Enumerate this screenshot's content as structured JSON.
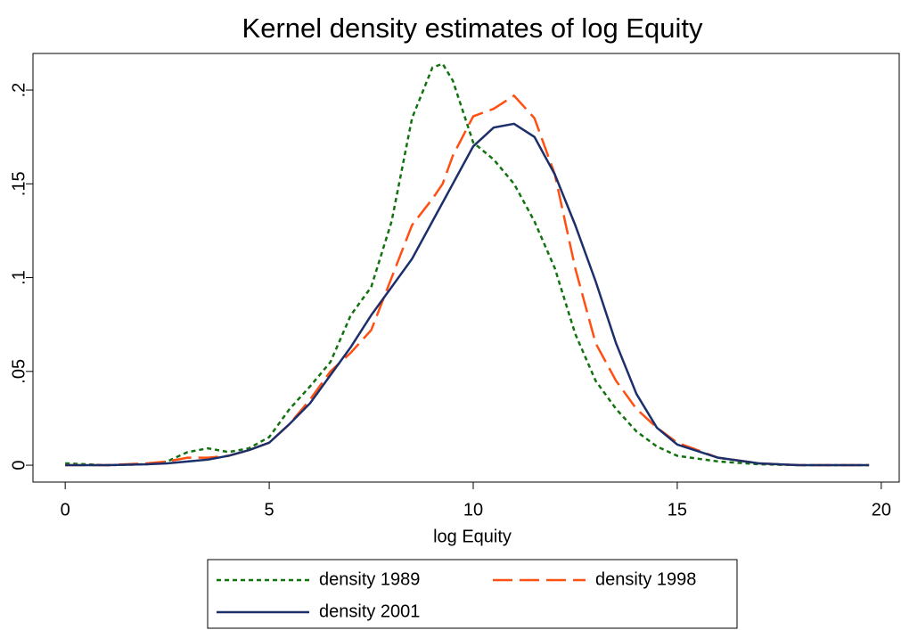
{
  "chart_data": {
    "type": "line",
    "title": "Kernel density estimates of log Equity",
    "x_label": "log Equity",
    "x": [
      0,
      1,
      2,
      2.5,
      3,
      3.5,
      4,
      4.5,
      5,
      5.5,
      6,
      6.5,
      7,
      7.5,
      8,
      8.5,
      9,
      9.25,
      9.5,
      10,
      10.5,
      11,
      11.5,
      12,
      12.5,
      13,
      13.5,
      14,
      14.5,
      15,
      16,
      17,
      18,
      19.7
    ],
    "series": [
      {
        "name": "density 1989",
        "color": "#12720f",
        "line_style": "short-dash",
        "values": [
          0.001,
          0,
          0.0005,
          0.002,
          0.007,
          0.009,
          0.007,
          0.009,
          0.015,
          0.03,
          0.042,
          0.055,
          0.08,
          0.095,
          0.13,
          0.185,
          0.212,
          0.214,
          0.205,
          0.172,
          0.163,
          0.15,
          0.13,
          0.105,
          0.07,
          0.045,
          0.03,
          0.018,
          0.01,
          0.005,
          0.002,
          0.0005,
          0,
          0
        ]
      },
      {
        "name": "density 1998",
        "color": "#ff4f12",
        "line_style": "long-dash",
        "values": [
          0,
          0,
          0.001,
          0.002,
          0.004,
          0.004,
          0.005,
          0.008,
          0.012,
          0.022,
          0.035,
          0.05,
          0.06,
          0.072,
          0.1,
          0.128,
          0.142,
          0.15,
          0.165,
          0.186,
          0.19,
          0.197,
          0.185,
          0.155,
          0.105,
          0.065,
          0.045,
          0.03,
          0.02,
          0.012,
          0.004,
          0.001,
          0,
          0
        ]
      },
      {
        "name": "density 2001",
        "color": "#1c2f6b",
        "line_style": "solid",
        "values": [
          0,
          0,
          0.0005,
          0.001,
          0.002,
          0.003,
          0.005,
          0.008,
          0.012,
          0.022,
          0.033,
          0.048,
          0.063,
          0.08,
          0.095,
          0.11,
          0.13,
          0.14,
          0.15,
          0.17,
          0.18,
          0.182,
          0.175,
          0.155,
          0.128,
          0.098,
          0.065,
          0.038,
          0.02,
          0.011,
          0.004,
          0.001,
          0,
          0
        ]
      }
    ],
    "xlim": [
      -0.79,
      20.44
    ],
    "ylim": [
      -0.009,
      0.2195
    ],
    "xticks": [
      0,
      5,
      10,
      15,
      20
    ],
    "yticks": [
      {
        "value": 0,
        "label": "0"
      },
      {
        "value": 0.05,
        "label": ".05"
      },
      {
        "value": 0.1,
        "label": ".1"
      },
      {
        "value": 0.15,
        "label": ".15"
      },
      {
        "value": 0.2,
        "label": ".2"
      }
    ],
    "grid": false,
    "legend": "bottom"
  }
}
